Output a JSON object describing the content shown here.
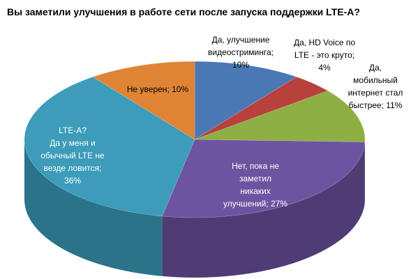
{
  "chart_data": {
    "type": "pie",
    "title": "Вы заметили улучшения в работе сети после запуска поддержки LTE-A?",
    "slices": [
      {
        "label": "Да, улучшение видеостриминга",
        "value": 10,
        "display": "Да, улучшение видеостриминга; 10%",
        "color": "#4a78b5",
        "side": "#36598a"
      },
      {
        "label": "Да, HD Voice по LTE - это круто",
        "value": 4,
        "display": "Да, HD Voice по LTE - это круто; 4%",
        "color": "#b8403d",
        "side": "#8a2f2d"
      },
      {
        "label": "Да, мобильный интернет стал быстрее",
        "value": 11,
        "display": "Да, мобильный интернет стал быстрее; 11%",
        "color": "#8eaf44",
        "side": "#6a8432"
      },
      {
        "label": "Нет, пока не заметил никаких улучшений",
        "value": 27,
        "display": "Нет, пока не заметил никаких улучшений; 27%",
        "color": "#6d54a0",
        "side": "#4f3c75"
      },
      {
        "label": "LTE-A? Да у меня и обычный LTE не везде ловится",
        "value": 36,
        "display": "LTE-A? Да у меня и обычный LTE не везде ловится; 36%",
        "color": "#3c9cba",
        "side": "#2b7389"
      },
      {
        "label": "Не уверен",
        "value": 10,
        "display": "Не уверен; 10%",
        "color": "#df8434",
        "side": "#a86226"
      }
    ],
    "labels": [
      {
        "lines": [
          "Да, улучшение",
          "видеостриминга;",
          "10%"
        ]
      },
      {
        "lines": [
          "Да, HD Voice по",
          "LTE - это круто;",
          "4%"
        ]
      },
      {
        "lines": [
          "Да,",
          "мобильный",
          "интернет стал",
          "быстрее; 11%"
        ]
      },
      {
        "lines": [
          "Нет, пока  не",
          "заметил",
          "никаких",
          "улучшений; 27%"
        ]
      },
      {
        "lines": [
          "LTE-A?",
          "Да у меня и",
          "обычный LTE не",
          "везде ловится;",
          "36%"
        ]
      },
      {
        "lines": [
          "Не уверен; 10%"
        ]
      }
    ],
    "start": "12 o'clock",
    "direction": "clockwise",
    "legend": "none",
    "grid": false
  }
}
